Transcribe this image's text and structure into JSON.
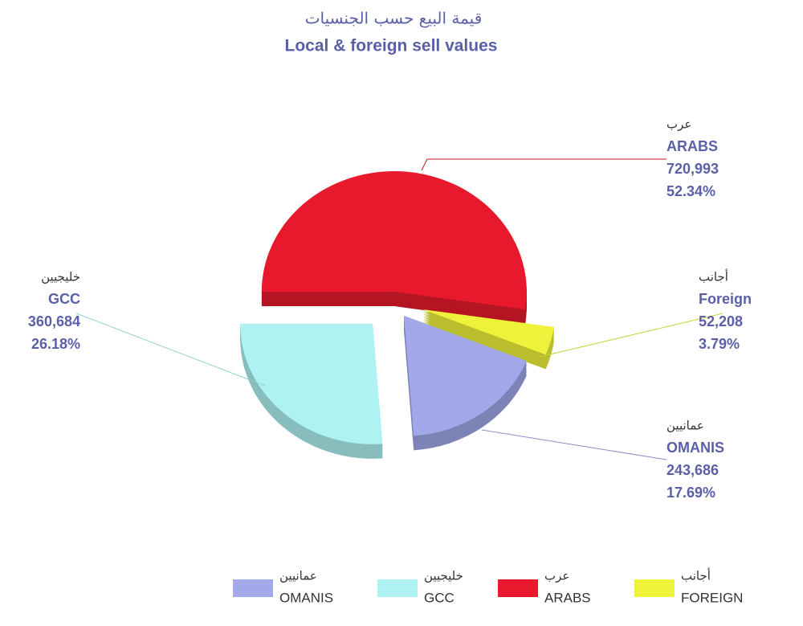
{
  "chart_data": {
    "type": "pie",
    "title_ar": "قيمة البيع حسب الجنسيات",
    "title": "Local & foreign sell values",
    "categories": [
      "ARABS",
      "Foreign",
      "OMANIS",
      "GCC"
    ],
    "categories_ar": [
      "عرب",
      "أجانب",
      "عمانيين",
      "خليجيين"
    ],
    "values": [
      720993,
      52208,
      243686,
      360684
    ],
    "value_labels": [
      "720,993",
      "52,208",
      "243,686",
      "360,684"
    ],
    "percents": [
      52.34,
      3.79,
      17.69,
      26.18
    ],
    "percent_labels": [
      "52.34%",
      "3.79%",
      "17.69%",
      "26.18%"
    ],
    "colors": [
      "#e8192c",
      "#eef23a",
      "#a2a8ea",
      "#aef2f2"
    ],
    "legend": [
      {
        "name": "OMANIS",
        "name_ar": "عمانيين",
        "color": "#a2a8ea"
      },
      {
        "name": "GCC",
        "name_ar": "خليجيين",
        "color": "#aef2f2"
      },
      {
        "name": "ARABS",
        "name_ar": "عرب",
        "color": "#e8192c"
      },
      {
        "name": "FOREIGN",
        "name_ar": "أجانب",
        "color": "#eef23a"
      }
    ]
  }
}
